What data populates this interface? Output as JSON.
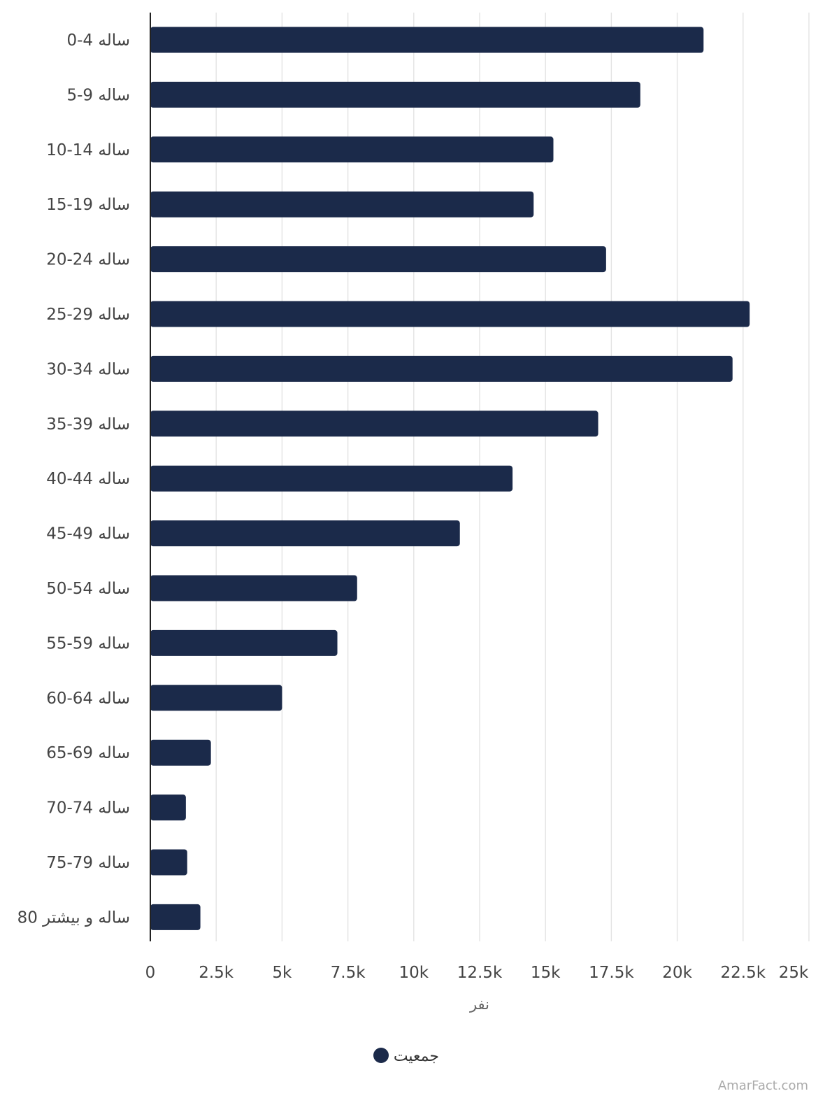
{
  "chart_data": {
    "type": "bar",
    "orientation": "horizontal",
    "categories": [
      "0-4 ساله",
      "5-9 ساله",
      "10-14 ساله",
      "15-19 ساله",
      "20-24 ساله",
      "25-29 ساله",
      "30-34 ساله",
      "35-39 ساله",
      "40-44 ساله",
      "45-49 ساله",
      "50-54 ساله",
      "55-59 ساله",
      "60-64 ساله",
      "65-69 ساله",
      "70-74 ساله",
      "75-79 ساله",
      "80 ساله و بیشتر"
    ],
    "series": [
      {
        "name": "جمعیت",
        "values": [
          21000,
          18600,
          15300,
          14550,
          17300,
          22750,
          22100,
          17000,
          13750,
          11750,
          7850,
          7100,
          5000,
          2300,
          1350,
          1400,
          1900
        ]
      }
    ],
    "title": "",
    "xlabel": "نفر",
    "ylabel": "",
    "xlim": [
      0,
      25000
    ],
    "x_ticks": [
      0,
      2500,
      5000,
      7500,
      10000,
      12500,
      15000,
      17500,
      20000,
      22500,
      25000
    ],
    "x_tick_labels": [
      "0",
      "2.5k",
      "5k",
      "7.5k",
      "10k",
      "12.5k",
      "15k",
      "17.5k",
      "20k",
      "22.5k",
      "25k"
    ],
    "grid": true,
    "legend_position": "bottom",
    "bar_color": "#1b2a4a"
  },
  "legend": {
    "label": "جمعیت"
  },
  "watermark": "AmarFact.com"
}
